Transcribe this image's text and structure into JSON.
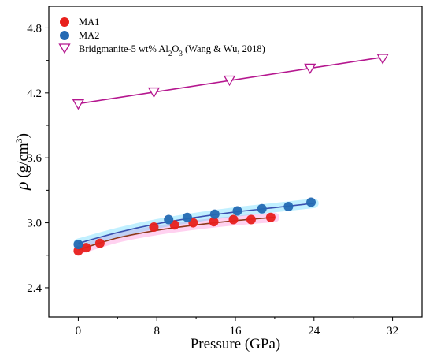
{
  "chart_data": {
    "type": "scatter",
    "xlabel": "Pressure (GPa)",
    "ylabel_symbol": "ρ",
    "ylabel_unit_open": " (g/cm",
    "ylabel_unit_sup": "3",
    "ylabel_unit_close": ")",
    "xlim": [
      -3,
      35
    ],
    "ylim": [
      2.13,
      5.0
    ],
    "x_ticks": [
      0,
      8,
      16,
      24,
      32
    ],
    "x_tick_labels": [
      "0",
      "8",
      "16",
      "24",
      "32"
    ],
    "y_ticks": [
      2.4,
      3.0,
      3.6,
      4.2,
      4.8
    ],
    "y_tick_labels": [
      "2.4",
      "3.0",
      "3.6",
      "4.2",
      "4.8"
    ],
    "legend_position": "top-left",
    "grid": false,
    "series": [
      {
        "name": "MA1",
        "marker": "circle",
        "color": "#e8201c",
        "fit_color": "#8b3a1a",
        "band_color": "#ff66cc",
        "points": [
          {
            "x": 0.0,
            "y": 2.74
          },
          {
            "x": 0.8,
            "y": 2.77
          },
          {
            "x": 2.2,
            "y": 2.81
          },
          {
            "x": 7.7,
            "y": 2.96
          },
          {
            "x": 9.8,
            "y": 2.98
          },
          {
            "x": 11.7,
            "y": 3.0
          },
          {
            "x": 13.8,
            "y": 3.01
          },
          {
            "x": 15.8,
            "y": 3.03
          },
          {
            "x": 17.6,
            "y": 3.03
          },
          {
            "x": 19.6,
            "y": 3.05
          }
        ],
        "fit": [
          {
            "x": 0,
            "y": 2.75
          },
          {
            "x": 4,
            "y": 2.86
          },
          {
            "x": 8,
            "y": 2.93
          },
          {
            "x": 12,
            "y": 2.98
          },
          {
            "x": 16,
            "y": 3.02
          },
          {
            "x": 20,
            "y": 3.05
          }
        ]
      },
      {
        "name": "MA2",
        "marker": "circle",
        "color": "#2469b3",
        "fit_color": "#3a4fb0",
        "band_color": "#33ccff",
        "points": [
          {
            "x": 0.0,
            "y": 2.8
          },
          {
            "x": 9.2,
            "y": 3.03
          },
          {
            "x": 11.1,
            "y": 3.05
          },
          {
            "x": 13.9,
            "y": 3.08
          },
          {
            "x": 16.2,
            "y": 3.11
          },
          {
            "x": 18.7,
            "y": 3.13
          },
          {
            "x": 21.4,
            "y": 3.15
          },
          {
            "x": 23.7,
            "y": 3.19
          }
        ],
        "fit": [
          {
            "x": 0,
            "y": 2.81
          },
          {
            "x": 4,
            "y": 2.91
          },
          {
            "x": 8,
            "y": 2.99
          },
          {
            "x": 12,
            "y": 3.05
          },
          {
            "x": 16,
            "y": 3.1
          },
          {
            "x": 20,
            "y": 3.14
          },
          {
            "x": 24,
            "y": 3.18
          }
        ]
      },
      {
        "name_main": "Bridgmanite-5 wt% Al",
        "name_sub1": "2",
        "name_mid": "O",
        "name_sub2": "3",
        "name_tail": " (Wang & Wu, 2018)",
        "marker": "triangle-down-open",
        "color": "#b5178f",
        "fit_color": "#b5178f",
        "points": [
          {
            "x": 0.0,
            "y": 4.1
          },
          {
            "x": 7.7,
            "y": 4.21
          },
          {
            "x": 15.4,
            "y": 4.32
          },
          {
            "x": 23.6,
            "y": 4.43
          },
          {
            "x": 31.0,
            "y": 4.52
          }
        ],
        "fit": [
          {
            "x": 0,
            "y": 4.1
          },
          {
            "x": 31,
            "y": 4.53
          }
        ]
      }
    ]
  }
}
